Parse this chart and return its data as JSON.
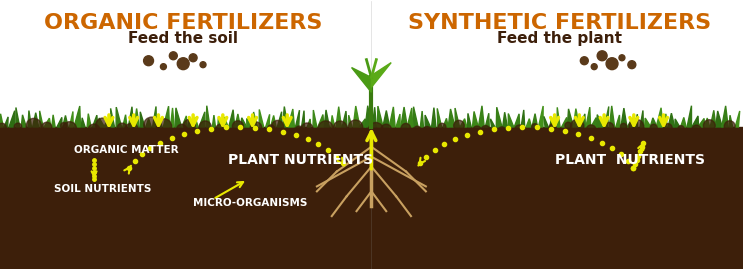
{
  "bg_color": "#ffffff",
  "soil_color": "#3d1f0a",
  "grass_color": "#4a7c20",
  "title_left": "ORGANIC FERTILIZERS",
  "subtitle_left": "Feed the soil",
  "title_right": "SYNTHETIC FERTILIZERS",
  "subtitle_right": "Feed the plant",
  "title_color": "#cc6600",
  "subtitle_color": "#3d1f0a",
  "label_color": "#ffffff",
  "arrow_color": "#e8e800",
  "dot_color": "#e8e800",
  "label_organic_matter": "ORGANIC MATTER",
  "label_soil_nutrients": "SOIL NUTRIENTS",
  "label_micro_organisms": "MICRO-ORGANISMS",
  "label_plant_nutrients_left": "PLANT NUTRIENTS",
  "label_plant_nutrients_right": "PLANT  NUTRIENTS",
  "soil_level": 0.47,
  "figsize": [
    7.5,
    2.7
  ],
  "dpi": 100
}
